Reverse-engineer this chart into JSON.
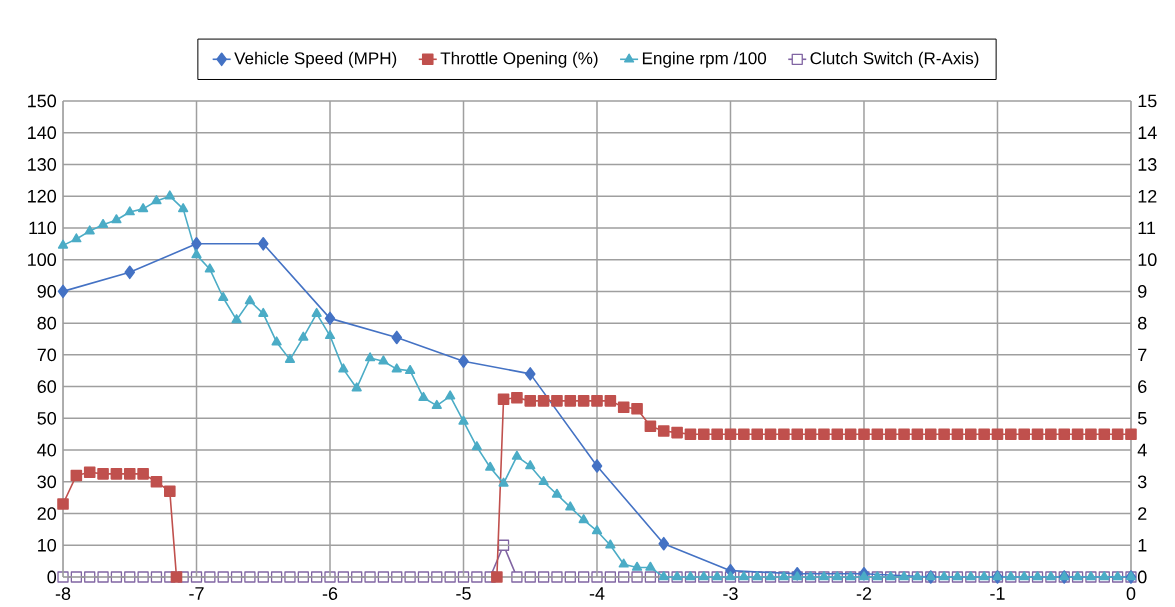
{
  "chart_data": {
    "type": "line",
    "xlim": [
      -8,
      0
    ],
    "xticks": [
      -8,
      -7,
      -6,
      -5,
      -4,
      -3,
      -2,
      -1,
      0
    ],
    "ylim": [
      0,
      150
    ],
    "yticks": [
      0,
      10,
      20,
      30,
      40,
      50,
      60,
      70,
      80,
      90,
      100,
      110,
      120,
      130,
      140,
      150
    ],
    "y2lim": [
      0,
      15
    ],
    "y2ticks": [
      0,
      1,
      2,
      3,
      4,
      5,
      6,
      7,
      8,
      9,
      10,
      11,
      12,
      13,
      14,
      15
    ],
    "grid": true,
    "legend": "top",
    "series": [
      {
        "name": "Vehicle Speed (MPH)",
        "color": "#4472c4",
        "marker": "diamond",
        "x": [
          -8,
          -7.5,
          -7,
          -6.5,
          -6,
          -5.5,
          -5,
          -4.5,
          -4,
          -3.5,
          -3,
          -2.5,
          -2,
          -1.5,
          -1,
          -0.5,
          0
        ],
        "values": [
          90,
          96,
          105,
          105,
          81.5,
          75.5,
          68,
          64,
          35,
          10.5,
          2,
          1,
          1,
          0,
          0,
          0,
          0
        ]
      },
      {
        "name": "Throttle Opening (%)",
        "color": "#c0504d",
        "marker": "square",
        "x": [
          -8,
          -7.9,
          -7.8,
          -7.7,
          -7.6,
          -7.5,
          -7.4,
          -7.3,
          -7.2,
          -7.15,
          -6,
          -4.75,
          -4.7,
          -4.6,
          -4.5,
          -4.4,
          -4.3,
          -4.2,
          -4.1,
          -4.0,
          -3.9,
          -3.8,
          -3.7,
          -3.6,
          -3.5,
          -3.4,
          -3.3,
          -3.2,
          -3.1,
          -3.0,
          -2.9,
          -2.8,
          -2.7,
          -2.6,
          -2.5,
          -2.4,
          -2.3,
          -2.2,
          -2.1,
          -2.0,
          -1.9,
          -1.8,
          -1.7,
          -1.6,
          -1.5,
          -1.4,
          -1.3,
          -1.2,
          -1.1,
          -1.0,
          -0.9,
          -0.8,
          -0.7,
          -0.6,
          -0.5,
          -0.4,
          -0.3,
          -0.2,
          -0.1,
          0
        ],
        "values": [
          23,
          32,
          33,
          32.5,
          32.5,
          32.5,
          32.5,
          30,
          27,
          0,
          null,
          0,
          56,
          56.5,
          55.5,
          55.5,
          55.5,
          55.5,
          55.5,
          55.5,
          55.5,
          53.5,
          53,
          47.5,
          46,
          45.5,
          45,
          45,
          45,
          45,
          45,
          45,
          45,
          45,
          45,
          45,
          45,
          45,
          45,
          45,
          45,
          45,
          45,
          45,
          45,
          45,
          45,
          45,
          45,
          45,
          45,
          45,
          45,
          45,
          45,
          45,
          45,
          45,
          45,
          45
        ]
      },
      {
        "name": "Engine rpm /100",
        "color": "#4bacc6",
        "marker": "triangle",
        "x": [
          -8,
          -7.9,
          -7.8,
          -7.7,
          -7.6,
          -7.5,
          -7.4,
          -7.3,
          -7.2,
          -7.1,
          -7.0,
          -6.9,
          -6.8,
          -6.7,
          -6.6,
          -6.5,
          -6.4,
          -6.3,
          -6.2,
          -6.1,
          -6.0,
          -5.9,
          -5.8,
          -5.7,
          -5.6,
          -5.5,
          -5.4,
          -5.3,
          -5.2,
          -5.1,
          -5.0,
          -4.9,
          -4.8,
          -4.7,
          -4.6,
          -4.5,
          -4.4,
          -4.3,
          -4.2,
          -4.1,
          -4.0,
          -3.9,
          -3.8,
          -3.7,
          -3.6,
          -3.5,
          -3.4,
          -3.3,
          -3.2,
          -3.1,
          -3.0,
          -2.9,
          -2.8,
          -2.7,
          -2.6,
          -2.5,
          -2.4,
          -2.3,
          -2.2,
          -2.1,
          -2.0,
          -1.9,
          -1.8,
          -1.7,
          -1.6,
          -1.5,
          -1.4,
          -1.3,
          -1.2,
          -1.1,
          -1.0,
          -0.9,
          -0.8,
          -0.7,
          -0.6,
          -0.5,
          -0.4,
          -0.3,
          -0.2,
          -0.1,
          0
        ],
        "values": [
          104.5,
          106.5,
          109,
          111,
          112.5,
          115,
          116,
          118.5,
          120,
          116,
          101.5,
          97,
          88,
          81,
          87,
          83,
          74,
          68.5,
          75.5,
          83,
          76,
          65.5,
          59.5,
          69,
          68,
          65.5,
          65,
          56.5,
          54,
          57,
          49,
          41,
          34.5,
          29.5,
          38,
          35,
          30,
          26,
          22,
          18,
          14.5,
          10,
          4,
          3,
          3,
          0,
          0,
          0,
          0,
          0,
          0,
          0,
          0,
          0,
          0,
          0,
          0,
          0,
          0,
          0,
          0,
          0,
          0,
          0,
          0,
          0,
          0,
          0,
          0,
          0,
          0,
          0,
          0,
          0,
          0,
          0,
          0,
          0,
          0,
          0,
          0
        ]
      },
      {
        "name": "Clutch Switch (R-Axis)",
        "color": "#8064a2",
        "marker": "square",
        "axis": "y2",
        "x": [
          -8,
          -7.9,
          -7.8,
          -7.7,
          -7.6,
          -7.5,
          -7.4,
          -7.3,
          -7.2,
          -7.1,
          -7.0,
          -6.9,
          -6.8,
          -6.7,
          -6.6,
          -6.5,
          -6.4,
          -6.3,
          -6.2,
          -6.1,
          -6.0,
          -5.9,
          -5.8,
          -5.7,
          -5.6,
          -5.5,
          -5.4,
          -5.3,
          -5.2,
          -5.1,
          -5.0,
          -4.9,
          -4.8,
          -4.7,
          -4.6,
          -4.5,
          -4.4,
          -4.3,
          -4.2,
          -4.1,
          -4.0,
          -3.9,
          -3.8,
          -3.7,
          -3.6,
          -3.5,
          -3.4,
          -3.3,
          -3.2,
          -3.1,
          -3.0,
          -2.9,
          -2.8,
          -2.7,
          -2.6,
          -2.5,
          -2.4,
          -2.3,
          -2.2,
          -2.1,
          -2.0,
          -1.9,
          -1.8,
          -1.7,
          -1.6,
          -1.5,
          -1.4,
          -1.3,
          -1.2,
          -1.1,
          -1.0,
          -0.9,
          -0.8,
          -0.7,
          -0.6,
          -0.5,
          -0.4,
          -0.3,
          -0.2,
          -0.1,
          0
        ],
        "values": [
          0,
          0,
          0,
          0,
          0,
          0,
          0,
          0,
          0,
          0,
          0,
          0,
          0,
          0,
          0,
          0,
          0,
          0,
          0,
          0,
          0,
          0,
          0,
          0,
          0,
          0,
          0,
          0,
          0,
          0,
          0,
          0,
          0,
          1,
          0,
          0,
          0,
          0,
          0,
          0,
          0,
          0,
          0,
          0,
          0,
          0,
          0,
          0,
          0,
          0,
          0,
          0,
          0,
          0,
          0,
          0,
          0,
          0,
          0,
          0,
          0,
          0,
          0,
          0,
          0,
          0,
          0,
          0,
          0,
          0,
          0,
          0,
          0,
          0,
          0,
          0,
          0,
          0,
          0,
          0,
          0
        ]
      }
    ]
  }
}
